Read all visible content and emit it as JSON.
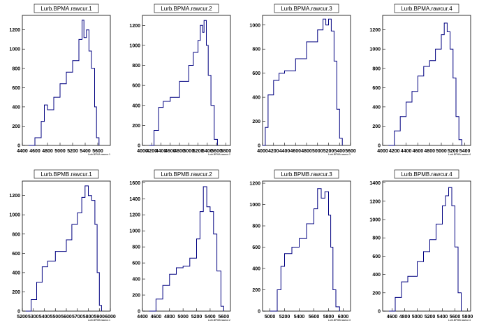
{
  "canvas": {
    "background": "#ffffff",
    "line_color": "#000080"
  },
  "chart_data": [
    {
      "type": "histogram",
      "title": "Lurb.BPMA.rawcur.1",
      "xlabel": "Lurb.BPMA.rawcur.1",
      "xlim": [
        4400,
        5800
      ],
      "ylim": [
        0,
        1350
      ],
      "xticks": [
        4400,
        4600,
        4800,
        5000,
        5200,
        5400,
        5600
      ],
      "yticks": [
        0,
        200,
        400,
        600,
        800,
        1000,
        1200
      ],
      "x": [
        4500,
        4600,
        4700,
        4750,
        4800,
        4900,
        5000,
        5100,
        5200,
        5300,
        5350,
        5380,
        5420,
        5460,
        5500,
        5550,
        5580,
        5620
      ],
      "y": [
        0,
        80,
        250,
        420,
        370,
        500,
        640,
        760,
        880,
        1100,
        1300,
        1120,
        1200,
        980,
        800,
        400,
        80,
        0
      ]
    },
    {
      "type": "histogram",
      "title": "Lurb.BPMA.rawcur.2",
      "xlabel": "Lurb.BPMA.rawcur.2",
      "xlim": [
        4000,
        5900
      ],
      "ylim": [
        0,
        1300
      ],
      "xticks": [
        4000,
        4200,
        4400,
        4600,
        4800,
        5000,
        5200,
        5400,
        5600,
        5800
      ],
      "yticks": [
        0,
        200,
        400,
        600,
        800,
        1000,
        1200
      ],
      "x": [
        4150,
        4250,
        4350,
        4450,
        4600,
        4800,
        5000,
        5100,
        5200,
        5250,
        5300,
        5330,
        5380,
        5420,
        5480,
        5550,
        5620
      ],
      "y": [
        0,
        150,
        380,
        440,
        480,
        640,
        800,
        930,
        1050,
        1200,
        1130,
        1250,
        1000,
        700,
        400,
        60,
        0
      ]
    },
    {
      "type": "histogram",
      "title": "Lurb.BPMA.rawcur.3",
      "xlabel": "Lurb.BPMA.rawcur.3",
      "xlim": [
        4000,
        5600
      ],
      "ylim": [
        0,
        1080
      ],
      "xticks": [
        4000,
        4200,
        4400,
        4600,
        4800,
        5000,
        5200,
        5400,
        5600
      ],
      "yticks": [
        0,
        200,
        400,
        600,
        800,
        1000
      ],
      "x": [
        4000,
        4050,
        4100,
        4200,
        4300,
        4400,
        4600,
        4800,
        5000,
        5100,
        5150,
        5200,
        5250,
        5300,
        5350,
        5400,
        5450
      ],
      "y": [
        0,
        150,
        420,
        540,
        600,
        620,
        720,
        860,
        960,
        1050,
        1000,
        1050,
        950,
        700,
        300,
        60,
        0
      ]
    },
    {
      "type": "histogram",
      "title": "Lurb.BPMA.rawcur.4",
      "xlabel": "Lurb.BPMA.rawcur.4",
      "xlim": [
        4000,
        5500
      ],
      "ylim": [
        0,
        1350
      ],
      "xticks": [
        4000,
        4200,
        4400,
        4600,
        4800,
        5000,
        5200,
        5400
      ],
      "yticks": [
        0,
        200,
        400,
        600,
        800,
        1000,
        1200
      ],
      "x": [
        4100,
        4200,
        4300,
        4400,
        4500,
        4600,
        4700,
        4800,
        4900,
        5000,
        5050,
        5100,
        5150,
        5200,
        5250,
        5300,
        5350
      ],
      "y": [
        0,
        150,
        300,
        450,
        560,
        720,
        820,
        880,
        1000,
        1150,
        1270,
        1180,
        1000,
        700,
        300,
        60,
        0
      ]
    },
    {
      "type": "histogram",
      "title": "Lurb.BPMB.rawcur.1",
      "xlabel": "Lurb.BPMB.rawcur.1",
      "xlim": [
        5200,
        6000
      ],
      "ylim": [
        0,
        1350
      ],
      "xticks": [
        5200,
        5300,
        5400,
        5500,
        5600,
        5700,
        5800,
        5900,
        6000
      ],
      "yticks": [
        0,
        200,
        400,
        600,
        800,
        1000,
        1200
      ],
      "x": [
        5230,
        5280,
        5330,
        5380,
        5430,
        5500,
        5600,
        5650,
        5700,
        5740,
        5770,
        5800,
        5830,
        5860,
        5880,
        5900,
        5920
      ],
      "y": [
        0,
        120,
        300,
        460,
        520,
        620,
        740,
        900,
        1020,
        1180,
        1300,
        1200,
        1150,
        900,
        400,
        60,
        0
      ]
    },
    {
      "type": "histogram",
      "title": "Lurb.BPMB.rawcur.2",
      "xlabel": "Lurb.BPMB.rawcur.2",
      "xlim": [
        4400,
        5700
      ],
      "ylim": [
        0,
        1620
      ],
      "xticks": [
        4400,
        4600,
        4800,
        5000,
        5200,
        5400,
        5600
      ],
      "yticks": [
        0,
        200,
        400,
        600,
        800,
        1000,
        1200,
        1400,
        1600
      ],
      "x": [
        4500,
        4600,
        4700,
        4800,
        4900,
        5000,
        5100,
        5200,
        5250,
        5300,
        5350,
        5400,
        5450,
        5500,
        5560,
        5600
      ],
      "y": [
        0,
        150,
        320,
        460,
        540,
        560,
        660,
        900,
        1240,
        1550,
        1300,
        1240,
        960,
        500,
        60,
        0
      ]
    },
    {
      "type": "histogram",
      "title": "Lurb.BPMB.rawcur.3",
      "xlabel": "Lurb.BPMB.rawcur.3",
      "xlim": [
        4900,
        6100
      ],
      "ylim": [
        0,
        1220
      ],
      "xticks": [
        5000,
        5200,
        5400,
        5600,
        5800,
        6000
      ],
      "yticks": [
        0,
        200,
        400,
        600,
        800,
        1000,
        1200
      ],
      "x": [
        5000,
        5100,
        5150,
        5200,
        5300,
        5400,
        5500,
        5600,
        5650,
        5700,
        5750,
        5800,
        5830,
        5860,
        5900,
        5950
      ],
      "y": [
        0,
        200,
        420,
        540,
        600,
        680,
        820,
        960,
        1150,
        1060,
        1120,
        900,
        600,
        200,
        40,
        0
      ]
    },
    {
      "type": "histogram",
      "title": "Lurb.BPMB.rawcur.4",
      "xlabel": "Lurb.BPMB.rawcur.4",
      "xlim": [
        4450,
        5850
      ],
      "ylim": [
        0,
        1420
      ],
      "xticks": [
        4600,
        4800,
        5000,
        5200,
        5400,
        5600,
        5800
      ],
      "yticks": [
        0,
        200,
        400,
        600,
        800,
        1000,
        1200,
        1400
      ],
      "x": [
        4550,
        4650,
        4750,
        4850,
        5000,
        5100,
        5200,
        5300,
        5400,
        5450,
        5500,
        5550,
        5600,
        5650,
        5700
      ],
      "y": [
        0,
        150,
        320,
        380,
        540,
        650,
        780,
        950,
        1150,
        1260,
        1350,
        1150,
        700,
        200,
        0
      ]
    }
  ]
}
